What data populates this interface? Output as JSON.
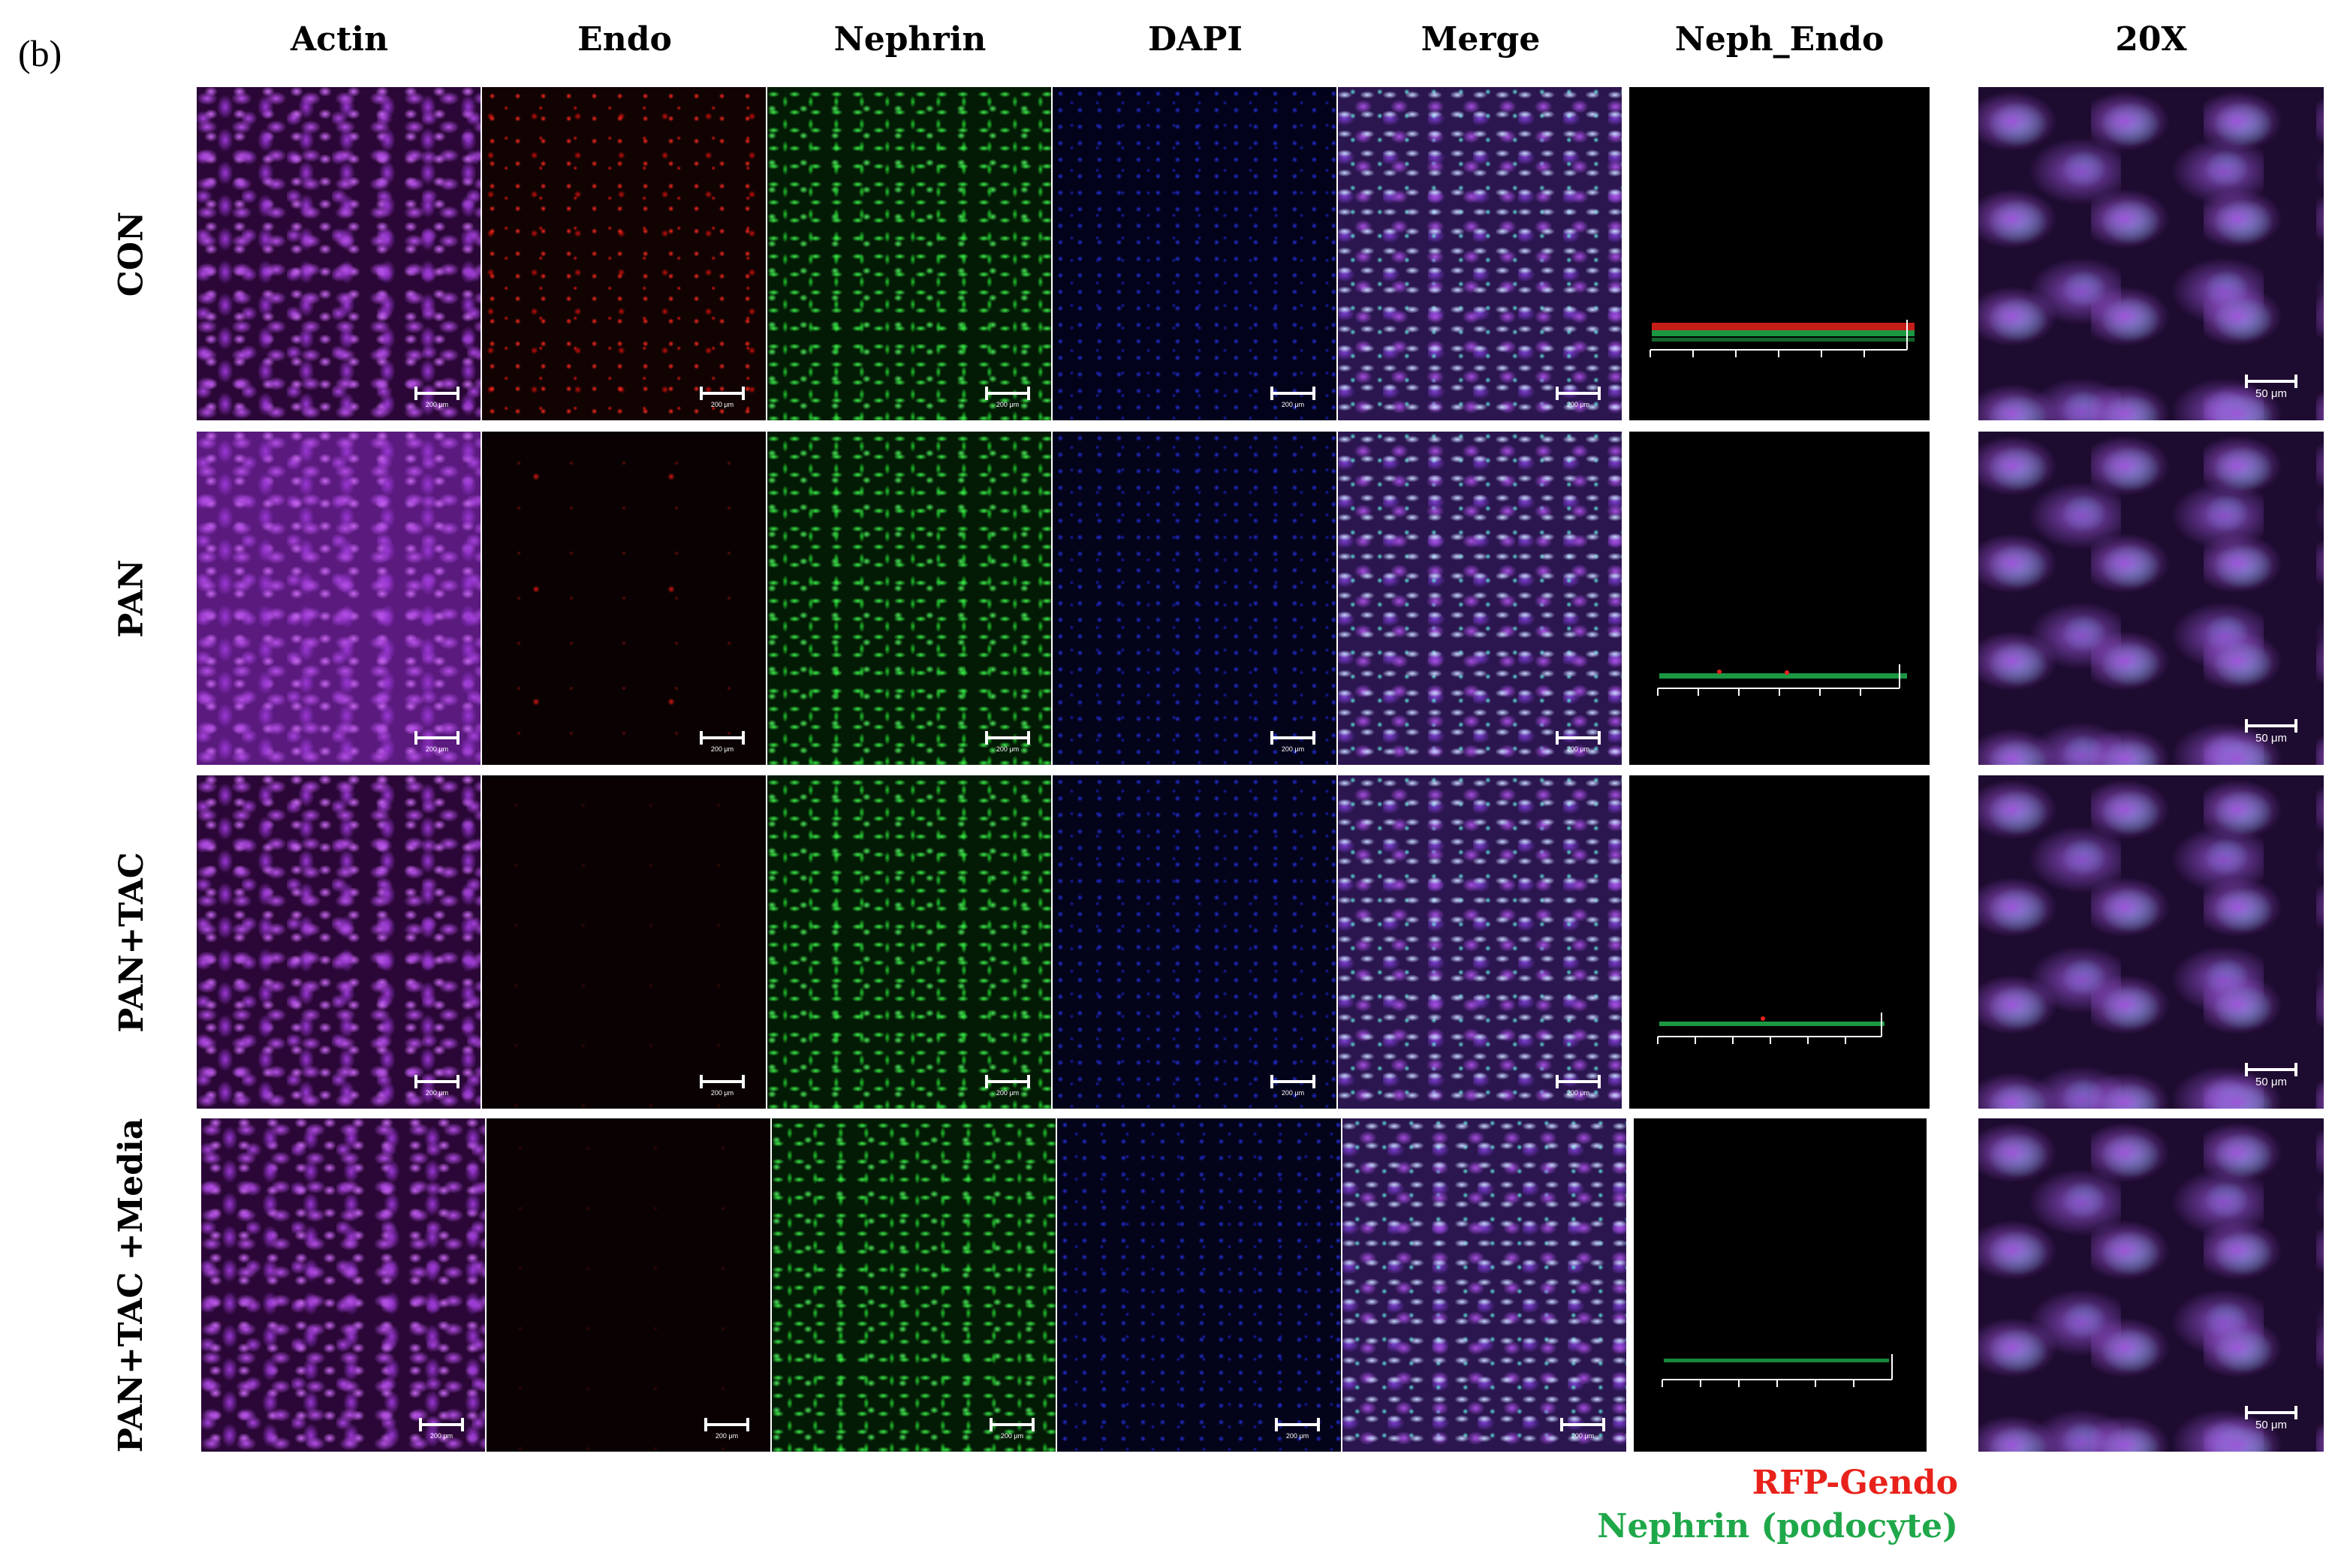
{
  "panel_label": "(b)",
  "columns": [
    "Actin",
    "Endo",
    "Nephrin",
    "DAPI",
    "Merge",
    "Neph_Endo",
    "20X"
  ],
  "rows": [
    "CON",
    "PAN",
    "PAN+TAC",
    "PAN+TAC +Media"
  ],
  "scale_bar_small": "200 μm",
  "scale_bar_20x": "50 μm",
  "legend": {
    "rfp": "RFP-Gendo",
    "nephrin": "Nephrin (podocyte)"
  },
  "colors": {
    "rfp": "#e8221b",
    "nephrin": "#1fa84a",
    "actin": "#a642dc",
    "dapi": "#2430d8"
  }
}
